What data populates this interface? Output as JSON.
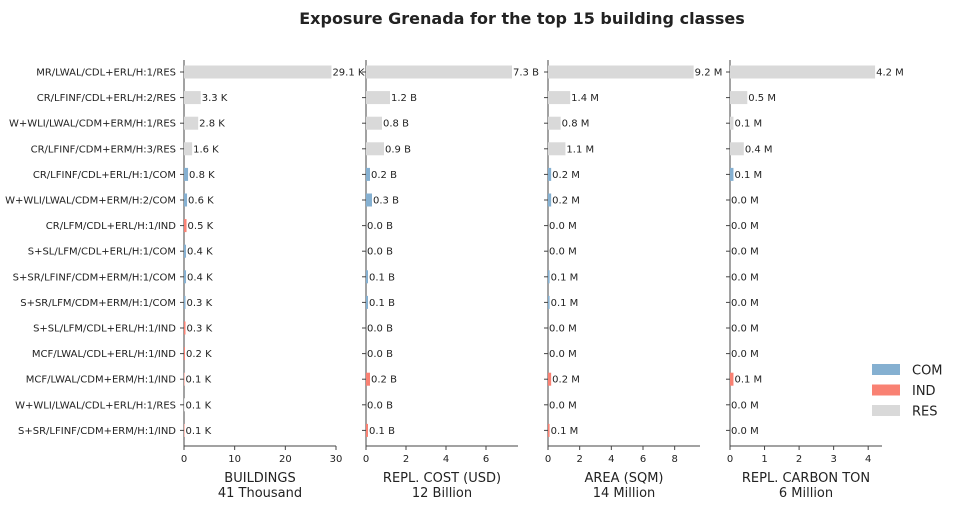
{
  "colors": {
    "COM": "#85b0d1",
    "IND": "#f98173",
    "RES": "#d9d9d9"
  },
  "chart_data": {
    "type": "bar",
    "orientation": "horizontal",
    "title": "Exposure Grenada for the top 15 building classes",
    "categories": [
      "MR/LWAL/CDL+ERL/H:1/RES",
      "CR/LFINF/CDL+ERL/H:2/RES",
      "W+WLI/LWAL/CDM+ERM/H:1/RES",
      "CR/LFINF/CDM+ERM/H:3/RES",
      "CR/LFINF/CDL+ERL/H:1/COM",
      "W+WLI/LWAL/CDM+ERM/H:2/COM",
      "CR/LFM/CDL+ERL/H:1/IND",
      "S+SL/LFM/CDL+ERL/H:1/COM",
      "S+SR/LFINF/CDM+ERM/H:1/COM",
      "S+SR/LFM/CDM+ERM/H:1/COM",
      "S+SL/LFM/CDL+ERL/H:1/IND",
      "MCF/LWAL/CDL+ERL/H:1/IND",
      "MCF/LWAL/CDM+ERM/H:1/IND",
      "W+WLI/LWAL/CDL+ERL/H:1/RES",
      "S+SR/LFINF/CDM+ERM/H:1/IND"
    ],
    "occupancy": [
      "RES",
      "RES",
      "RES",
      "RES",
      "COM",
      "COM",
      "IND",
      "COM",
      "COM",
      "COM",
      "IND",
      "IND",
      "IND",
      "RES",
      "IND"
    ],
    "legend": {
      "position": "bottom-right",
      "entries": [
        "COM",
        "IND",
        "RES"
      ]
    },
    "panels": [
      {
        "xlabel": "BUILDINGS",
        "total": "41 Thousand",
        "xlim": [
          0,
          30
        ],
        "ticks": [
          "0",
          "10",
          "20",
          "30"
        ],
        "tick_values": [
          0,
          10,
          20,
          30
        ],
        "values": [
          29.1,
          3.3,
          2.8,
          1.6,
          0.8,
          0.6,
          0.5,
          0.4,
          0.4,
          0.3,
          0.3,
          0.2,
          0.1,
          0.1,
          0.1
        ],
        "labels": [
          "29.1 K",
          "3.3 K",
          "2.8 K",
          "1.6 K",
          "0.8 K",
          "0.6 K",
          "0.5 K",
          "0.4 K",
          "0.4 K",
          "0.3 K",
          "0.3 K",
          "0.2 K",
          "0.1 K",
          "0.1 K",
          "0.1 K"
        ]
      },
      {
        "xlabel": "REPL. COST (USD)",
        "total": "12 Billion",
        "xlim": [
          0,
          7.6
        ],
        "ticks": [
          "0",
          "2",
          "4",
          "6"
        ],
        "tick_values": [
          0,
          2,
          4,
          6
        ],
        "values": [
          7.3,
          1.2,
          0.8,
          0.9,
          0.2,
          0.3,
          0.0,
          0.0,
          0.1,
          0.1,
          0.0,
          0.0,
          0.2,
          0.0,
          0.1
        ],
        "labels": [
          "7.3 B",
          "1.2 B",
          "0.8 B",
          "0.9 B",
          "0.2 B",
          "0.3 B",
          "0.0 B",
          "0.0 B",
          "0.1 B",
          "0.1 B",
          "0.0 B",
          "0.0 B",
          "0.2 B",
          "0.0 B",
          "0.1 B"
        ]
      },
      {
        "xlabel": "AREA (SQM)",
        "total": "14 Million",
        "xlim": [
          0,
          9.6
        ],
        "ticks": [
          "0",
          "2",
          "4",
          "6",
          "8"
        ],
        "tick_values": [
          0,
          2,
          4,
          6,
          8
        ],
        "values": [
          9.2,
          1.4,
          0.8,
          1.1,
          0.2,
          0.2,
          0.0,
          0.0,
          0.1,
          0.1,
          0.0,
          0.0,
          0.2,
          0.0,
          0.1
        ],
        "labels": [
          "9.2 M",
          "1.4 M",
          "0.8 M",
          "1.1 M",
          "0.2 M",
          "0.2 M",
          "0.0 M",
          "0.0 M",
          "0.1 M",
          "0.1 M",
          "0.0 M",
          "0.0 M",
          "0.2 M",
          "0.0 M",
          "0.1 M"
        ]
      },
      {
        "xlabel": "REPL. CARBON TON",
        "total": "6 Million",
        "xlim": [
          0,
          4.4
        ],
        "ticks": [
          "0",
          "1",
          "2",
          "3",
          "4"
        ],
        "tick_values": [
          0,
          1,
          2,
          3,
          4
        ],
        "values": [
          4.2,
          0.5,
          0.1,
          0.4,
          0.1,
          0.0,
          0.0,
          0.0,
          0.0,
          0.0,
          0.0,
          0.0,
          0.1,
          0.0,
          0.0
        ],
        "labels": [
          "4.2 M",
          "0.5 M",
          "0.1 M",
          "0.4 M",
          "0.1 M",
          "0.0 M",
          "0.0 M",
          "0.0 M",
          "0.0 M",
          "0.0 M",
          "0.0 M",
          "0.0 M",
          "0.1 M",
          "0.0 M",
          "0.0 M"
        ]
      }
    ]
  }
}
